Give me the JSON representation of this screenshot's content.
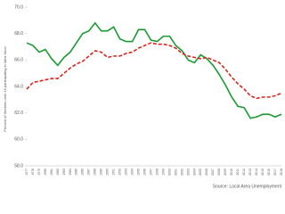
{
  "chart_data": {
    "type": "line",
    "y_label": "Percent of Workers over 16 participating in labor force",
    "source": "Source: Local Area Unemployment",
    "categories": [
      "1977",
      "1978",
      "1979",
      "1980",
      "1981",
      "1982",
      "1983",
      "1984",
      "1985",
      "1986",
      "1987",
      "1988",
      "1989",
      "1990",
      "1991",
      "1992",
      "1993",
      "1994",
      "1995",
      "1996",
      "1997",
      "1998",
      "1999",
      "2000",
      "2001",
      "2002",
      "2003",
      "2004",
      "2005",
      "2006",
      "2007",
      "2008",
      "2009",
      "2010",
      "2011",
      "2012",
      "2013",
      "2014",
      "2015",
      "2016",
      "2017",
      "2018"
    ],
    "series": [
      {
        "color": "#1a9a32",
        "dash": false,
        "values": [
          67.3,
          67.1,
          66.6,
          66.8,
          66.1,
          65.6,
          66.2,
          66.6,
          67.3,
          68.0,
          68.2,
          68.8,
          68.2,
          68.2,
          68.5,
          67.6,
          67.4,
          67.4,
          68.3,
          68.3,
          67.5,
          67.4,
          67.8,
          67.8,
          67.1,
          66.7,
          66.0,
          65.8,
          66.4,
          66.1,
          65.6,
          64.9,
          64.1,
          63.2,
          62.5,
          62.4,
          61.6,
          61.7,
          61.9,
          61.9,
          61.7,
          61.9
        ]
      },
      {
        "color": "#d9261c",
        "dash": true,
        "values": [
          63.8,
          64.3,
          64.4,
          64.5,
          64.6,
          64.6,
          65.0,
          65.4,
          65.7,
          65.9,
          66.3,
          66.7,
          66.6,
          66.2,
          66.3,
          66.3,
          66.5,
          66.6,
          66.9,
          67.1,
          67.3,
          67.2,
          67.2,
          67.1,
          66.9,
          66.5,
          66.3,
          66.2,
          66.1,
          66.2,
          66.0,
          65.8,
          65.3,
          64.7,
          64.2,
          63.8,
          63.3,
          63.1,
          63.2,
          63.2,
          63.3,
          63.5
        ]
      }
    ],
    "ylim": [
      58,
      70
    ],
    "yticks": [
      {
        "value": 58,
        "label": "58.0"
      },
      {
        "value": 60,
        "label": "60.0"
      },
      {
        "value": 62,
        "label": "62.0"
      },
      {
        "value": 64,
        "label": "64.0"
      },
      {
        "value": 66,
        "label": "66.0"
      },
      {
        "value": 68,
        "label": "68.0"
      },
      {
        "value": 70,
        "label": "70.0"
      }
    ]
  }
}
